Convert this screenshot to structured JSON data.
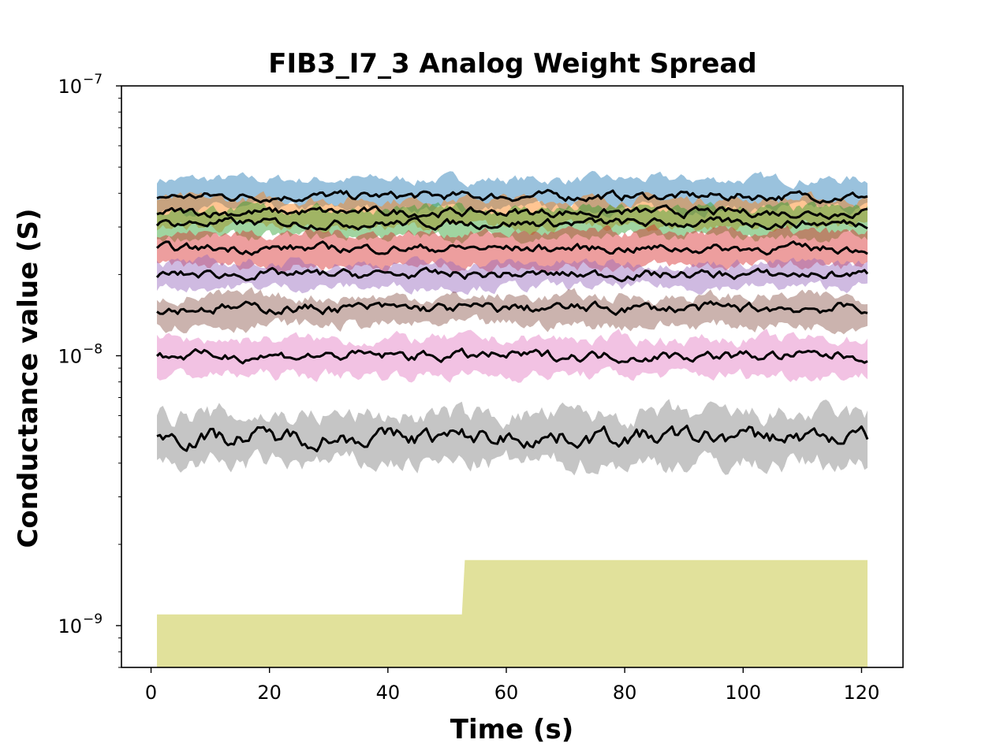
{
  "chart_data": {
    "type": "area",
    "title": "FIB3_I7_3 Analog Weight Spread",
    "xlabel": "Time (s)",
    "ylabel": "Conductance value (S)",
    "xscale": "linear",
    "yscale": "log",
    "xlim": [
      -5,
      127
    ],
    "ylim": [
      7e-10,
      1e-07
    ],
    "x_ticks": [
      0,
      20,
      40,
      60,
      80,
      100,
      120
    ],
    "x_tick_labels": [
      "0",
      "20",
      "40",
      "60",
      "80",
      "100",
      "120"
    ],
    "y_ticks": [
      1e-09,
      1e-08,
      1e-07
    ],
    "y_tick_labels": [
      {
        "base": "10",
        "exp": "−9"
      },
      {
        "base": "10",
        "exp": "−8"
      },
      {
        "base": "10",
        "exp": "−7"
      }
    ],
    "grid": false,
    "legend": "none",
    "x_range": [
      1,
      121
    ],
    "median_color": "#000000",
    "series": [
      {
        "color": "#1f77b4",
        "median": 3.9e-08,
        "low": 3.5e-08,
        "high": 4.5e-08,
        "wiggle": 0.03
      },
      {
        "color": "#ff7f0e",
        "median": 3.4e-08,
        "low": 3e-08,
        "high": 3.8e-08,
        "wiggle": 0.03
      },
      {
        "color": "#2ca02c",
        "median": 3.1e-08,
        "low": 2.75e-08,
        "high": 3.5e-08,
        "wiggle": 0.03
      },
      {
        "color": "#d62728",
        "median": 2.5e-08,
        "low": 2.15e-08,
        "high": 2.85e-08,
        "wiggle": 0.03
      },
      {
        "color": "#9467bd",
        "median": 2e-08,
        "low": 1.8e-08,
        "high": 2.2e-08,
        "wiggle": 0.03
      },
      {
        "color": "#8c564b",
        "median": 1.5e-08,
        "low": 1.3e-08,
        "high": 1.65e-08,
        "wiggle": 0.035
      },
      {
        "color": "#e377c2",
        "median": 1e-08,
        "low": 8.5e-09,
        "high": 1.15e-08,
        "wiggle": 0.035
      },
      {
        "color": "#7f7f7f",
        "median": 5e-09,
        "low": 4e-09,
        "high": 6e-09,
        "wiggle": 0.06
      },
      {
        "color": "#bcbd22",
        "median": null,
        "low": 6.5e-10,
        "high": 1.1e-09,
        "high_after": 1.75e-09,
        "step_x": 53,
        "wiggle": 0.0
      }
    ]
  }
}
